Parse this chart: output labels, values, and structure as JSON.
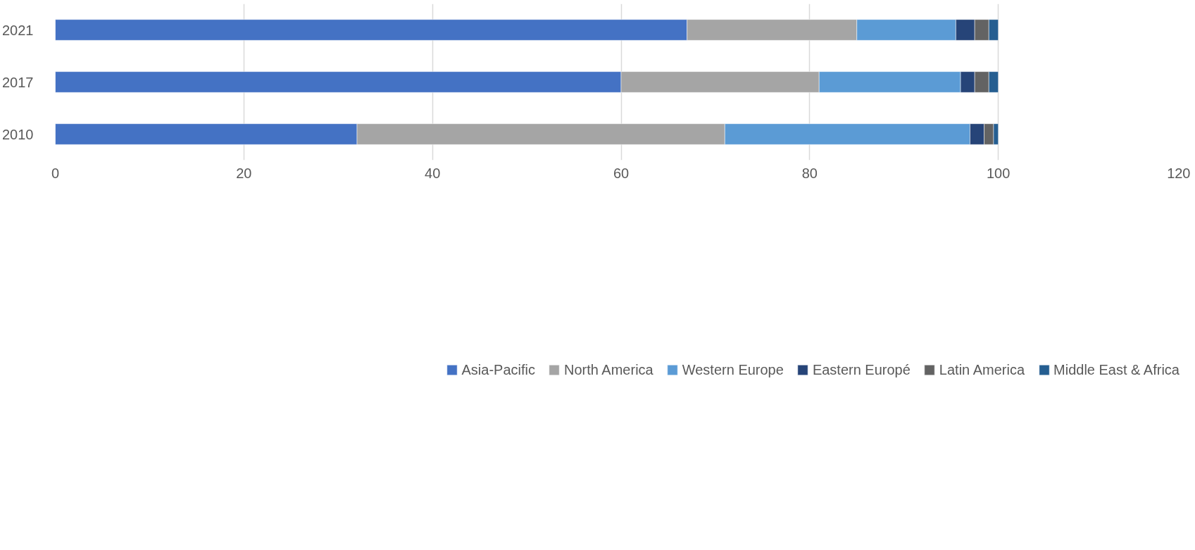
{
  "chart_data": {
    "type": "bar",
    "orientation": "horizontal",
    "stacked": true,
    "categories": [
      "2021",
      "2017",
      "2010"
    ],
    "series": [
      {
        "name": "Asia-Pacific",
        "color": "#4472c4",
        "values": [
          67,
          60,
          32
        ]
      },
      {
        "name": "North America",
        "color": "#a5a5a5",
        "values": [
          18,
          21,
          39
        ]
      },
      {
        "name": "Western Europe",
        "color": "#5b9bd5",
        "values": [
          10.5,
          15,
          26
        ]
      },
      {
        "name": "Eastern Europé",
        "color": "#264478",
        "values": [
          2,
          1.5,
          1.5
        ]
      },
      {
        "name": "Latin America",
        "color": "#636363",
        "values": [
          1.5,
          1.5,
          1
        ]
      },
      {
        "name": "Middle East & Africa",
        "color": "#255e91",
        "values": [
          1,
          1,
          0.5
        ]
      }
    ],
    "xlim": [
      0,
      120
    ],
    "xticks": [
      0,
      20,
      40,
      60,
      80,
      100,
      120
    ],
    "grid": "x",
    "legend": "bottom"
  }
}
